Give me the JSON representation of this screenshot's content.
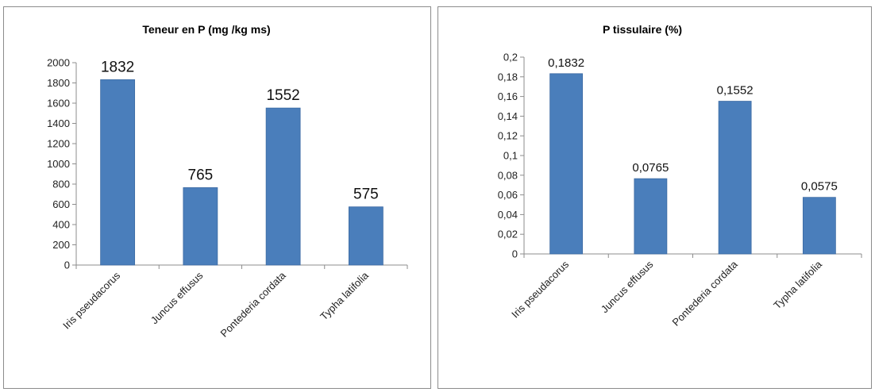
{
  "chart_data": [
    {
      "type": "bar",
      "title": "Teneur en P (mg /kg ms)",
      "categories": [
        "Iris pseudacorus",
        "Juncus effusus",
        "Pontederia cordata",
        "Typha latifolia"
      ],
      "values": [
        1832,
        765,
        1552,
        575
      ],
      "data_labels": [
        "1832",
        "765",
        "1552",
        "575"
      ],
      "ylim": [
        0,
        2000
      ],
      "y_ticks": [
        0,
        200,
        400,
        600,
        800,
        1000,
        1200,
        1400,
        1600,
        1800,
        2000
      ],
      "y_tick_labels": [
        "0",
        "200",
        "400",
        "600",
        "800",
        "1000",
        "1200",
        "1400",
        "1600",
        "1800",
        "2000"
      ],
      "xlabel": "",
      "ylabel": "",
      "grid": false,
      "legend": "none",
      "bar_color": "#4a7ebb"
    },
    {
      "type": "bar",
      "title": "P tissulaire (%)",
      "categories": [
        "Iris pseudacorus",
        "Juncus effusus",
        "Pontederia cordata",
        "Typha latifolia"
      ],
      "values": [
        0.1832,
        0.0765,
        0.1552,
        0.0575
      ],
      "data_labels": [
        "0,1832",
        "0,0765",
        "0,1552",
        "0,0575"
      ],
      "ylim": [
        0,
        0.2
      ],
      "y_ticks": [
        0,
        0.02,
        0.04,
        0.06,
        0.08,
        0.1,
        0.12,
        0.14,
        0.16,
        0.18,
        0.2
      ],
      "y_tick_labels": [
        "0",
        "0,02",
        "0,04",
        "0,06",
        "0,08",
        "0,1",
        "0,12",
        "0,14",
        "0,16",
        "0,18",
        "0,2"
      ],
      "xlabel": "",
      "ylabel": "",
      "grid": false,
      "legend": "none",
      "bar_color": "#4a7ebb"
    }
  ]
}
